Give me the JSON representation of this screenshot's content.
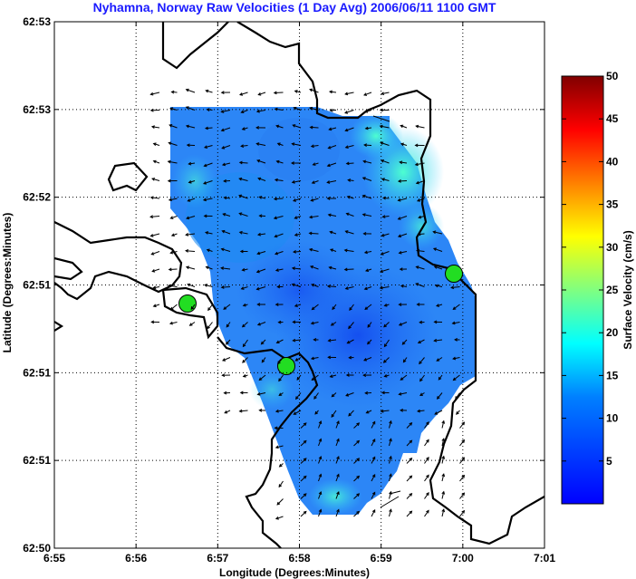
{
  "chart_data": {
    "type": "heatmap",
    "title": "Nyhamna, Norway Raw Velocities (1 Day Avg) 2006/06/11 1100 GMT",
    "xlabel": "Longitude (Degrees:Minutes)",
    "ylabel": "Latitude (Degrees:Minutes)",
    "x_ticks": [
      "6:55",
      "6:56",
      "6:57",
      "6:58",
      "6:59",
      "7:00",
      "7:01"
    ],
    "y_ticks": [
      "62:50",
      "62:51",
      "62:51",
      "62:51",
      "62:52",
      "62:53",
      "62:53"
    ],
    "grid": true,
    "colorbar": {
      "label": "Surface Velocity (cm/s)",
      "min": 0,
      "max": 50,
      "ticks": [
        "5",
        "10",
        "15",
        "20",
        "25",
        "30",
        "35",
        "40",
        "45",
        "50"
      ],
      "colormap": "jet"
    },
    "stations": [
      "site-west",
      "site-south",
      "site-east"
    ],
    "field_color_range": "mostly 2-12 cm/s, blue to cyan"
  }
}
